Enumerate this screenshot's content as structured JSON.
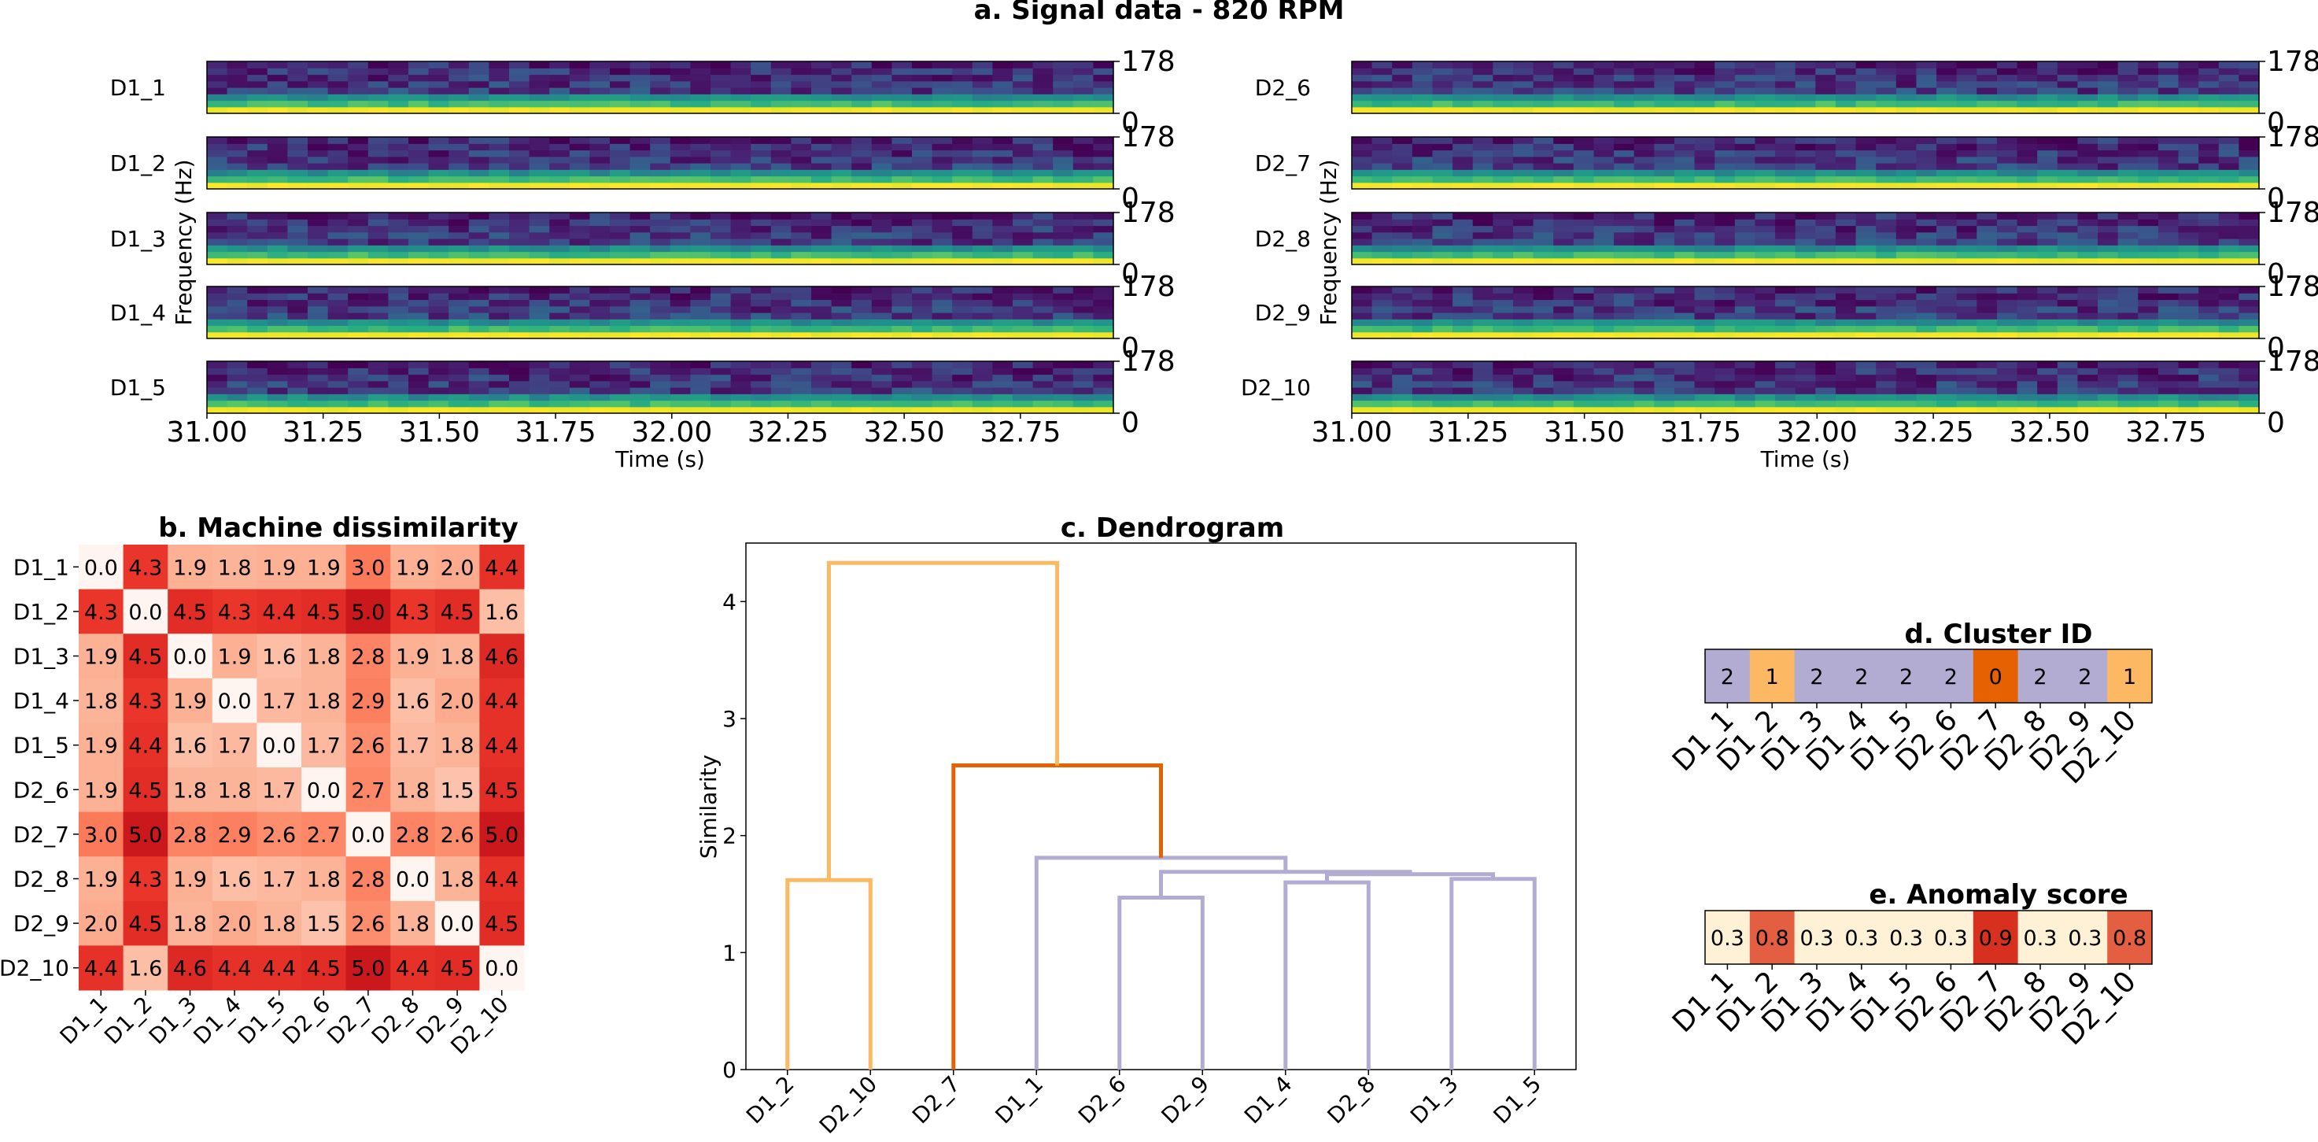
{
  "chart_data": [
    {
      "id": "a",
      "type": "heatmap",
      "title": "a. Signal data - 820 RPM",
      "xlabel": "Time (s)",
      "ylabel": "Frequency (Hz)",
      "xlim": [
        31.0,
        32.95
      ],
      "ylim": [
        0,
        178
      ],
      "ytick_labels": [
        "178",
        "0"
      ],
      "xtick_labels": [
        "31.00",
        "31.25",
        "31.50",
        "31.75",
        "32.00",
        "32.25",
        "32.50",
        "32.75"
      ],
      "left_machines": [
        "D1_1",
        "D1_2",
        "D1_3",
        "D1_4",
        "D1_5"
      ],
      "right_machines": [
        "D2_6",
        "D2_7",
        "D2_8",
        "D2_9",
        "D2_10"
      ],
      "colormap": "viridis"
    },
    {
      "id": "b",
      "type": "heatmap",
      "title": "b. Machine dissimilarity",
      "labels": [
        "D1_1",
        "D1_2",
        "D1_3",
        "D1_4",
        "D1_5",
        "D2_6",
        "D2_7",
        "D2_8",
        "D2_9",
        "D2_10"
      ],
      "matrix": [
        [
          0.0,
          4.3,
          1.9,
          1.8,
          1.9,
          1.9,
          3.0,
          1.9,
          2.0,
          4.4
        ],
        [
          4.3,
          0.0,
          4.5,
          4.3,
          4.4,
          4.5,
          5.0,
          4.3,
          4.5,
          1.6
        ],
        [
          1.9,
          4.5,
          0.0,
          1.9,
          1.6,
          1.8,
          2.8,
          1.9,
          1.8,
          4.6
        ],
        [
          1.8,
          4.3,
          1.9,
          0.0,
          1.7,
          1.8,
          2.9,
          1.6,
          2.0,
          4.4
        ],
        [
          1.9,
          4.4,
          1.6,
          1.7,
          0.0,
          1.7,
          2.6,
          1.7,
          1.8,
          4.4
        ],
        [
          1.9,
          4.5,
          1.8,
          1.8,
          1.7,
          0.0,
          2.7,
          1.8,
          1.5,
          4.5
        ],
        [
          3.0,
          5.0,
          2.8,
          2.9,
          2.6,
          2.7,
          0.0,
          2.8,
          2.6,
          5.0
        ],
        [
          1.9,
          4.3,
          1.9,
          1.6,
          1.7,
          1.8,
          2.8,
          0.0,
          1.8,
          4.4
        ],
        [
          2.0,
          4.5,
          1.8,
          2.0,
          1.8,
          1.5,
          2.6,
          1.8,
          0.0,
          4.5
        ],
        [
          4.4,
          1.6,
          4.6,
          4.4,
          4.4,
          4.5,
          5.0,
          4.4,
          4.5,
          0.0
        ]
      ],
      "colormap": "Reds",
      "vmax": 5.0
    },
    {
      "id": "c",
      "type": "dendrogram",
      "title": "c. Dendrogram",
      "ylabel": "Similarity",
      "ylim": [
        0,
        4.5
      ],
      "ytick_labels": [
        "0",
        "1",
        "2",
        "3",
        "4"
      ],
      "leaves": [
        "D1_2",
        "D2_10",
        "D2_7",
        "D1_1",
        "D2_6",
        "D2_9",
        "D1_4",
        "D2_8",
        "D1_3",
        "D1_5"
      ],
      "links": [
        {
          "color": "#fdb863",
          "x": [
            5,
            5,
            15,
            15
          ],
          "y": [
            0,
            1.62,
            1.62,
            0
          ]
        },
        {
          "color": "#b2abd2",
          "x": [
            45,
            45,
            55,
            55
          ],
          "y": [
            0,
            1.47,
            1.47,
            0
          ]
        },
        {
          "color": "#b2abd2",
          "x": [
            65,
            65,
            75,
            75
          ],
          "y": [
            0,
            1.6,
            1.6,
            0
          ]
        },
        {
          "color": "#b2abd2",
          "x": [
            85,
            85,
            95,
            95
          ],
          "y": [
            0,
            1.63,
            1.63,
            0
          ]
        },
        {
          "color": "#b2abd2",
          "x": [
            70,
            70,
            90,
            90
          ],
          "y": [
            1.6,
            1.67,
            1.67,
            1.63
          ]
        },
        {
          "color": "#b2abd2",
          "x": [
            50,
            50,
            80,
            80
          ],
          "y": [
            1.47,
            1.69,
            1.69,
            1.67
          ]
        },
        {
          "color": "#b2abd2",
          "x": [
            35,
            35,
            65,
            65
          ],
          "y": [
            0,
            1.81,
            1.81,
            1.69
          ]
        },
        {
          "color": "#e66101",
          "x": [
            25,
            25,
            50,
            50
          ],
          "y": [
            0,
            2.6,
            2.6,
            1.81
          ]
        },
        {
          "color": "#fdb863",
          "x": [
            10,
            10,
            37.5,
            37.5
          ],
          "y": [
            1.62,
            4.33,
            4.33,
            2.6
          ]
        }
      ]
    },
    {
      "id": "d",
      "type": "heatmap",
      "title": "d. Cluster ID",
      "labels": [
        "D1_1",
        "D1_2",
        "D1_3",
        "D1_4",
        "D1_5",
        "D2_6",
        "D2_7",
        "D2_8",
        "D2_9",
        "D2_10"
      ],
      "values": [
        2,
        1,
        2,
        2,
        2,
        2,
        0,
        2,
        2,
        1
      ],
      "value_labels": [
        "2",
        "1",
        "2",
        "2",
        "2",
        "2",
        "0",
        "2",
        "2",
        "1"
      ],
      "cluster_colors": [
        "#e66101",
        "#fdb863",
        "#b2abd2"
      ]
    },
    {
      "id": "e",
      "type": "heatmap",
      "title": "e. Anomaly score",
      "labels": [
        "D1_1",
        "D1_2",
        "D1_3",
        "D1_4",
        "D1_5",
        "D2_6",
        "D2_7",
        "D2_8",
        "D2_9",
        "D2_10"
      ],
      "values": [
        0.3,
        0.8,
        0.3,
        0.3,
        0.3,
        0.3,
        0.9,
        0.3,
        0.3,
        0.8
      ],
      "value_labels": [
        "0.3",
        "0.8",
        "0.3",
        "0.3",
        "0.3",
        "0.3",
        "0.9",
        "0.3",
        "0.3",
        "0.8"
      ]
    }
  ]
}
